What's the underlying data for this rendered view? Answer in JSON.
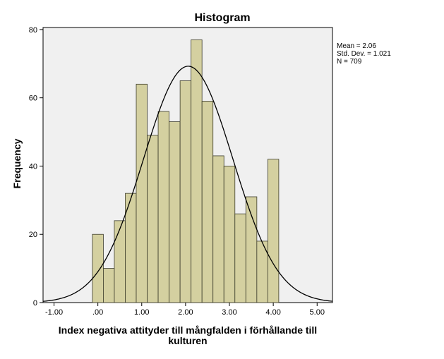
{
  "chart_data": {
    "type": "bar",
    "title": "Histogram",
    "xlabel_lines": [
      "Index negativa attityder till mångfalden i förhållande till",
      "kulturen"
    ],
    "ylabel": "Frequency",
    "xlim": [
      -1.25,
      5.35
    ],
    "ylim": [
      0,
      80.6
    ],
    "x_ticks": [
      -1,
      0,
      1,
      2,
      3,
      4,
      5
    ],
    "x_tick_labels": [
      "-1.00",
      ".00",
      "1.00",
      "2.00",
      "3.00",
      "4.00",
      "5.00"
    ],
    "y_ticks": [
      0,
      20,
      40,
      60,
      80
    ],
    "y_tick_labels": [
      "0",
      "20",
      "40",
      "60",
      "80"
    ],
    "bin_width": 0.25,
    "bins": [
      {
        "x0": -0.125,
        "x1": 0.125,
        "count": 20
      },
      {
        "x0": 0.125,
        "x1": 0.375,
        "count": 10
      },
      {
        "x0": 0.375,
        "x1": 0.625,
        "count": 24
      },
      {
        "x0": 0.625,
        "x1": 0.875,
        "count": 32
      },
      {
        "x0": 0.875,
        "x1": 1.125,
        "count": 64
      },
      {
        "x0": 1.125,
        "x1": 1.375,
        "count": 49
      },
      {
        "x0": 1.375,
        "x1": 1.625,
        "count": 56
      },
      {
        "x0": 1.625,
        "x1": 1.875,
        "count": 53
      },
      {
        "x0": 1.875,
        "x1": 2.125,
        "count": 65
      },
      {
        "x0": 2.125,
        "x1": 2.375,
        "count": 77
      },
      {
        "x0": 2.375,
        "x1": 2.625,
        "count": 59
      },
      {
        "x0": 2.625,
        "x1": 2.875,
        "count": 43
      },
      {
        "x0": 2.875,
        "x1": 3.125,
        "count": 40
      },
      {
        "x0": 3.125,
        "x1": 3.375,
        "count": 26
      },
      {
        "x0": 3.375,
        "x1": 3.625,
        "count": 31
      },
      {
        "x0": 3.625,
        "x1": 3.875,
        "count": 18
      },
      {
        "x0": 3.875,
        "x1": 4.125,
        "count": 42
      }
    ],
    "normal_curve": {
      "mean": 2.06,
      "std": 1.021,
      "n": 709
    },
    "stats": [
      "Mean = 2.06",
      "Std. Dev. = 1.021",
      "N = 709"
    ],
    "colors": {
      "bar_fill": "#d4d0a0",
      "bar_stroke": "#3b3b2a",
      "plot_bg": "#f0f0f0",
      "curve": "#000000",
      "axis": "#000000",
      "text": "#000000"
    },
    "grid": false,
    "legend": "none"
  }
}
